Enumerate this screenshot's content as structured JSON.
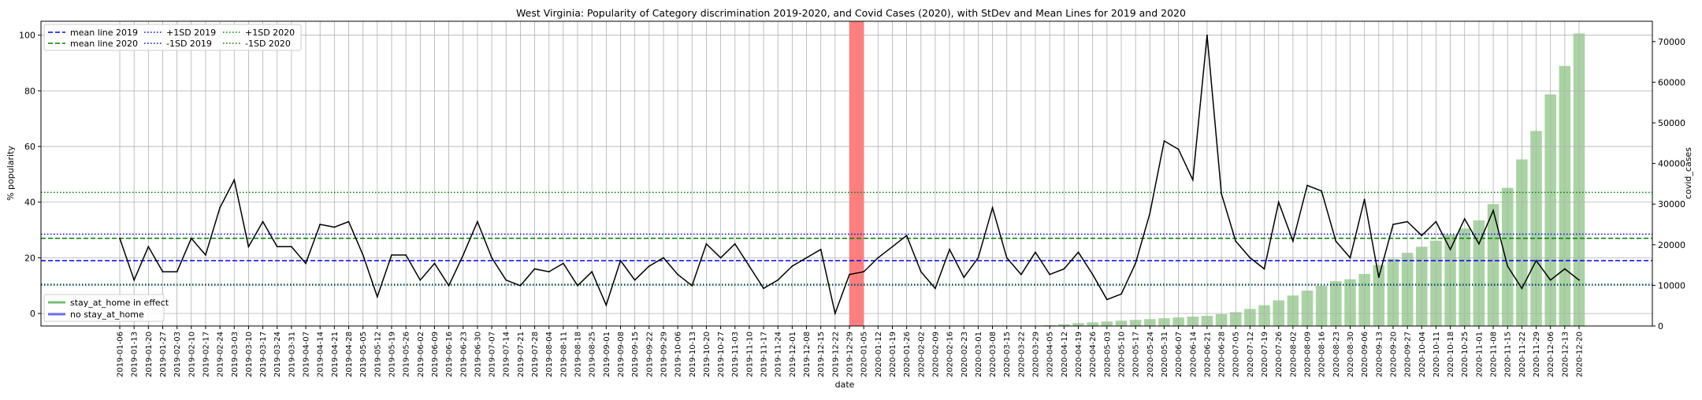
{
  "chart_data": {
    "type": "line",
    "title": "West Virginia: Popularity of Category discrimination 2019-2020, and Covid Cases (2020), with StDev and Mean Lines for 2019 and 2020",
    "xlabel": "date",
    "ylabel": "% popularity",
    "y2label": "covid_cases",
    "ylim": [
      -4.5,
      105
    ],
    "y2lim": [
      0,
      75000
    ],
    "yticks": [
      0,
      20,
      40,
      60,
      80,
      100
    ],
    "y2ticks": [
      0,
      10000,
      20000,
      30000,
      40000,
      50000,
      60000,
      70000
    ],
    "grid": true,
    "x": [
      "2019-01-06",
      "2019-01-13",
      "2019-01-20",
      "2019-01-27",
      "2019-02-03",
      "2019-02-10",
      "2019-02-17",
      "2019-02-24",
      "2019-03-03",
      "2019-03-10",
      "2019-03-17",
      "2019-03-24",
      "2019-03-31",
      "2019-04-07",
      "2019-04-14",
      "2019-04-21",
      "2019-04-28",
      "2019-05-05",
      "2019-05-12",
      "2019-05-19",
      "2019-05-26",
      "2019-06-02",
      "2019-06-09",
      "2019-06-16",
      "2019-06-23",
      "2019-06-30",
      "2019-07-07",
      "2019-07-14",
      "2019-07-21",
      "2019-07-28",
      "2019-08-04",
      "2019-08-11",
      "2019-08-18",
      "2019-08-25",
      "2019-09-01",
      "2019-09-08",
      "2019-09-15",
      "2019-09-22",
      "2019-09-29",
      "2019-10-06",
      "2019-10-13",
      "2019-10-20",
      "2019-10-27",
      "2019-11-03",
      "2019-11-10",
      "2019-11-17",
      "2019-11-24",
      "2019-12-01",
      "2019-12-08",
      "2019-12-15",
      "2019-12-22",
      "2019-12-29",
      "2020-01-05",
      "2020-01-12",
      "2020-01-19",
      "2020-01-26",
      "2020-02-02",
      "2020-02-09",
      "2020-02-16",
      "2020-02-23",
      "2020-03-01",
      "2020-03-08",
      "2020-03-15",
      "2020-03-22",
      "2020-03-29",
      "2020-04-05",
      "2020-04-12",
      "2020-04-19",
      "2020-04-26",
      "2020-05-03",
      "2020-05-10",
      "2020-05-17",
      "2020-05-24",
      "2020-05-31",
      "2020-06-07",
      "2020-06-14",
      "2020-06-21",
      "2020-06-28",
      "2020-07-05",
      "2020-07-12",
      "2020-07-19",
      "2020-07-26",
      "2020-08-02",
      "2020-08-09",
      "2020-08-16",
      "2020-08-23",
      "2020-08-30",
      "2020-09-06",
      "2020-09-13",
      "2020-09-20",
      "2020-09-27",
      "2020-10-04",
      "2020-10-11",
      "2020-10-18",
      "2020-10-25",
      "2020-11-01",
      "2020-11-08",
      "2020-11-15",
      "2020-11-22",
      "2020-11-29",
      "2020-12-06",
      "2020-12-13",
      "2020-12-20"
    ],
    "xticklabels": [
      "2019-01-06",
      "2019-01-13",
      "2019-01-20",
      "2019-01-27",
      "2019-02-03",
      "2019-02-10",
      "2019-02-17",
      "2019-02-24",
      "2019-03-03",
      "2019-03-10",
      "2019-03-17",
      "2019-03-24",
      "2019-03-31",
      "2019-04-07",
      "2019-04-14",
      "2019-04-21",
      "2019-04-28",
      "2019-05-05",
      "2019-05-12",
      "2019-05-19",
      "2019-05-26",
      "2019-06-02",
      "2019-06-09",
      "2019-06-16",
      "2019-06-23",
      "2019-06-30",
      "2019-07-07",
      "2019-07-14",
      "2019-07-21",
      "2019-07-28",
      "2019-08-04",
      "2019-08-11",
      "2019-08-18",
      "2019-08-25",
      "2019-09-01",
      "2019-09-08",
      "2019-09-15",
      "2019-09-22",
      "2019-09-29",
      "2019-10-06",
      "2019-10-13",
      "2019-10-20",
      "2019-10-27",
      "2019-11-03",
      "2019-11-10",
      "2019-11-17",
      "2019-11-24",
      "2019-12-01",
      "2019-12-08",
      "2019-12-15",
      "2019-12-22",
      "2019-12-29",
      "2020-01-05",
      "2020-01-12",
      "2020-01-19",
      "2020-01-26",
      "2020-02-02",
      "2020-02-09",
      "2020-02-16",
      "2020-02-23",
      "2020-03-01",
      "2020-03-08",
      "2020-03-15",
      "2020-03-22",
      "2020-03-29",
      "2020-04-05",
      "2020-04-12",
      "2020-04-19",
      "2020-04-26",
      "2020-05-03",
      "2020-05-10",
      "2020-05-17",
      "2020-05-24",
      "2020-05-31",
      "2020-06-07",
      "2020-06-14",
      "2020-06-21",
      "2020-06-28",
      "2020-07-05",
      "2020-07-12",
      "2020-07-19",
      "2020-07-26",
      "2020-08-02",
      "2020-08-09",
      "2020-08-16",
      "2020-08-23",
      "2020-08-30",
      "2020-09-06",
      "2020-09-13",
      "2020-09-20",
      "2020-09-27",
      "2020-10-04",
      "2020-10-11",
      "2020-10-18",
      "2020-10-25",
      "2020-11-01",
      "2020-11-08",
      "2020-11-15",
      "2020-11-22",
      "2020-11-29",
      "2020-12-06",
      "2020-12-13",
      "2020-12-20"
    ],
    "series": [
      {
        "values": [
          27,
          12,
          24,
          15,
          15,
          27,
          21,
          38,
          48,
          24,
          33,
          24,
          24,
          18,
          32,
          31,
          33,
          21,
          6,
          21,
          21,
          12,
          18,
          10,
          21,
          33,
          20,
          12,
          10,
          16,
          15,
          18,
          10,
          15,
          3,
          19,
          12,
          17,
          20,
          14,
          10,
          25,
          20,
          25,
          17,
          9,
          12,
          17,
          20,
          23,
          0,
          14,
          15,
          20,
          24,
          28,
          15,
          9,
          23,
          13,
          20,
          38,
          20,
          14,
          22,
          14,
          16,
          22,
          14,
          5,
          7,
          18,
          36,
          62,
          59,
          48,
          100,
          43,
          26,
          20,
          16,
          40,
          26,
          46,
          44,
          26,
          20,
          41,
          13,
          32,
          33,
          28,
          33,
          23,
          34,
          25,
          37,
          17,
          9,
          19,
          12,
          16,
          12
        ],
        "color": "#000000"
      },
      {
        "name": "covid_cases",
        "axis": "right",
        "type": "bar",
        "values": [
          0,
          0,
          0,
          0,
          0,
          0,
          0,
          0,
          0,
          0,
          0,
          0,
          0,
          0,
          0,
          0,
          0,
          0,
          0,
          0,
          0,
          0,
          0,
          0,
          0,
          0,
          0,
          0,
          0,
          0,
          0,
          0,
          0,
          0,
          0,
          0,
          0,
          0,
          0,
          0,
          0,
          0,
          0,
          0,
          0,
          0,
          0,
          0,
          0,
          0,
          0,
          0,
          0,
          0,
          0,
          0,
          0,
          0,
          0,
          0,
          0,
          0,
          0,
          0,
          0,
          200,
          400,
          700,
          900,
          1100,
          1300,
          1500,
          1700,
          1900,
          2100,
          2300,
          2500,
          2900,
          3400,
          4200,
          5100,
          6300,
          7500,
          8700,
          9900,
          11000,
          11500,
          12800,
          15000,
          16500,
          18000,
          19500,
          21000,
          22500,
          24000,
          26000,
          30000,
          34000,
          41000,
          48000,
          57000,
          64000,
          72000
        ],
        "color": "#a9d3a3"
      }
    ],
    "hlines": [
      {
        "name": "mean line 2019",
        "value": 19,
        "color": "#0000ff",
        "style": "dashed"
      },
      {
        "name": "mean line 2020",
        "value": 27,
        "color": "#008000",
        "style": "dashed"
      },
      {
        "name": "+1SD 2019",
        "value": 28.5,
        "color": "#0000ff",
        "style": "dotted"
      },
      {
        "name": "-1SD 2019",
        "value": 10.2,
        "color": "#0000ff",
        "style": "dotted"
      },
      {
        "name": "+1SD 2020",
        "value": 43.5,
        "color": "#008000",
        "style": "dotted"
      },
      {
        "name": "-1SD 2020",
        "value": 10.5,
        "color": "#008000",
        "style": "dotted"
      }
    ],
    "highlight_span": {
      "from": "2019-12-29",
      "to": "2020-01-05",
      "color": "#ff7f7f"
    },
    "legend_top": {
      "placement": "upper-left",
      "entries": [
        "mean line 2019",
        "mean line 2020",
        "+1SD 2019",
        "-1SD 2019",
        "+1SD 2020",
        "-1SD 2020"
      ]
    },
    "legend_bottom": {
      "placement": "lower-left",
      "entries": [
        {
          "label": "stay_at_home in effect",
          "color": "#77bb77"
        },
        {
          "label": "no stay_at_home",
          "color": "#6b6bef"
        }
      ]
    }
  }
}
